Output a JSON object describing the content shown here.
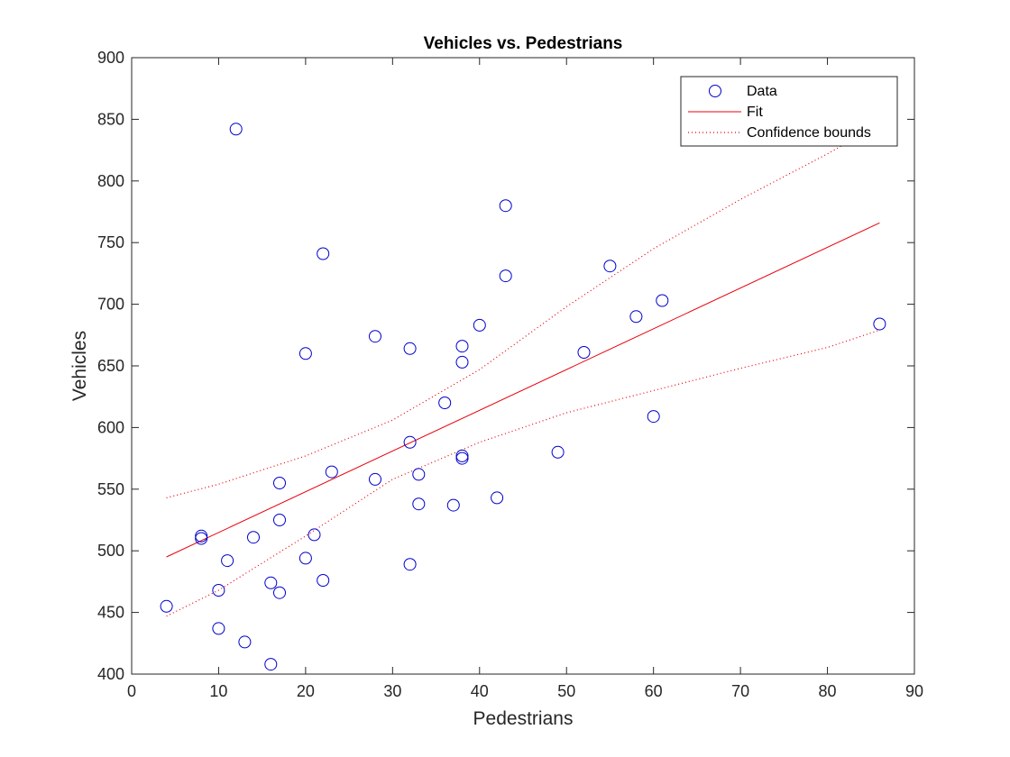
{
  "chart_data": {
    "type": "scatter",
    "title": "Vehicles vs. Pedestrians",
    "xlabel": "Pedestrians",
    "ylabel": "Vehicles",
    "xlim": [
      0,
      90
    ],
    "ylim": [
      400,
      900
    ],
    "xticks": [
      0,
      10,
      20,
      30,
      40,
      50,
      60,
      70,
      80,
      90
    ],
    "yticks": [
      400,
      450,
      500,
      550,
      600,
      650,
      700,
      750,
      800,
      850,
      900
    ],
    "grid": false,
    "legend_position": "top-right",
    "colors": {
      "data": "#0000cc",
      "fit": "#e8000b",
      "bounds": "#e8000b"
    },
    "series": [
      {
        "name": "Data",
        "style": "circle-markers",
        "points": [
          [
            12,
            842
          ],
          [
            22,
            741
          ],
          [
            43,
            780
          ],
          [
            43,
            723
          ],
          [
            55,
            731
          ],
          [
            61,
            703
          ],
          [
            58,
            690
          ],
          [
            40,
            683
          ],
          [
            28,
            674
          ],
          [
            32,
            664
          ],
          [
            38,
            666
          ],
          [
            20,
            660
          ],
          [
            52,
            661
          ],
          [
            38,
            653
          ],
          [
            36,
            620
          ],
          [
            60,
            609
          ],
          [
            86,
            684
          ],
          [
            32,
            588
          ],
          [
            49,
            580
          ],
          [
            38,
            577
          ],
          [
            38,
            575
          ],
          [
            23,
            564
          ],
          [
            33,
            562
          ],
          [
            28,
            558
          ],
          [
            17,
            555
          ],
          [
            42,
            543
          ],
          [
            33,
            538
          ],
          [
            37,
            537
          ],
          [
            17,
            525
          ],
          [
            21,
            513
          ],
          [
            14,
            511
          ],
          [
            8,
            512
          ],
          [
            8,
            510
          ],
          [
            20,
            494
          ],
          [
            11,
            492
          ],
          [
            32,
            489
          ],
          [
            22,
            476
          ],
          [
            16,
            474
          ],
          [
            10,
            468
          ],
          [
            17,
            466
          ],
          [
            4,
            455
          ],
          [
            10,
            437
          ],
          [
            13,
            426
          ],
          [
            16,
            408
          ]
        ]
      },
      {
        "name": "Fit",
        "style": "solid-line",
        "points": [
          [
            4,
            495
          ],
          [
            86,
            766
          ]
        ]
      },
      {
        "name": "Confidence bounds",
        "style": "dotted-line",
        "upper": [
          [
            4,
            543
          ],
          [
            10,
            554
          ],
          [
            20,
            577
          ],
          [
            30,
            606
          ],
          [
            40,
            647
          ],
          [
            50,
            698
          ],
          [
            60,
            745
          ],
          [
            70,
            785
          ],
          [
            80,
            822
          ],
          [
            82,
            830
          ]
        ],
        "lower": [
          [
            4,
            447
          ],
          [
            10,
            468
          ],
          [
            20,
            512
          ],
          [
            30,
            558
          ],
          [
            40,
            588
          ],
          [
            50,
            612
          ],
          [
            60,
            630
          ],
          [
            70,
            648
          ],
          [
            80,
            665
          ],
          [
            86,
            679
          ]
        ]
      }
    ]
  }
}
